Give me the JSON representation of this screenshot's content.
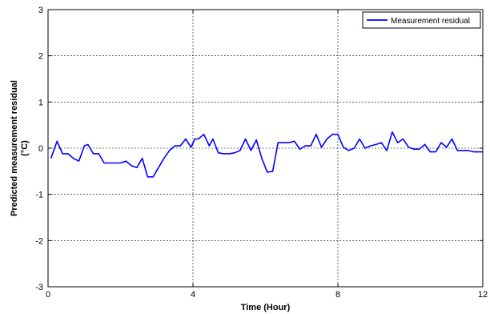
{
  "chart_data": {
    "type": "line",
    "title": "",
    "xlabel": "Time (Hour)",
    "ylabel_line1": "Predicted measurement residual",
    "ylabel_line2": "(°C)",
    "xlim": [
      0,
      12
    ],
    "ylim": [
      -3,
      3
    ],
    "xticks": [
      0,
      4,
      8,
      12
    ],
    "yticks": [
      -3,
      -2,
      -1,
      0,
      1,
      2,
      3
    ],
    "grid": true,
    "legend_position": "top-right",
    "series": [
      {
        "name": "Measurement residual",
        "color": "#0000ff",
        "x": [
          0.08,
          0.25,
          0.4,
          0.55,
          0.7,
          0.85,
          1.0,
          1.1,
          1.25,
          1.4,
          1.55,
          1.7,
          1.85,
          2.0,
          2.15,
          2.3,
          2.45,
          2.6,
          2.75,
          2.9,
          3.05,
          3.2,
          3.35,
          3.5,
          3.65,
          3.8,
          3.95,
          4.05,
          4.15,
          4.3,
          4.45,
          4.55,
          4.7,
          4.85,
          5.0,
          5.15,
          5.3,
          5.45,
          5.6,
          5.75,
          5.9,
          6.05,
          6.2,
          6.35,
          6.5,
          6.65,
          6.8,
          6.95,
          7.1,
          7.25,
          7.4,
          7.55,
          7.7,
          7.85,
          8.0,
          8.15,
          8.3,
          8.45,
          8.6,
          8.75,
          8.9,
          9.05,
          9.2,
          9.35,
          9.5,
          9.65,
          9.8,
          9.95,
          10.1,
          10.25,
          10.4,
          10.55,
          10.7,
          10.85,
          11.0,
          11.15,
          11.3,
          11.45,
          11.6,
          11.75,
          11.9,
          12.0
        ],
        "y": [
          -0.22,
          0.15,
          -0.12,
          -0.12,
          -0.22,
          -0.28,
          0.05,
          0.08,
          -0.12,
          -0.12,
          -0.32,
          -0.32,
          -0.32,
          -0.32,
          -0.28,
          -0.38,
          -0.42,
          -0.22,
          -0.62,
          -0.62,
          -0.42,
          -0.22,
          -0.05,
          0.05,
          0.05,
          0.2,
          0.02,
          0.2,
          0.2,
          0.3,
          0.05,
          0.2,
          -0.1,
          -0.12,
          -0.12,
          -0.1,
          -0.05,
          0.2,
          -0.05,
          0.18,
          -0.22,
          -0.52,
          -0.5,
          0.12,
          0.12,
          0.12,
          0.15,
          -0.02,
          0.05,
          0.05,
          0.3,
          0.02,
          0.2,
          0.3,
          0.3,
          0.02,
          -0.05,
          0.0,
          0.2,
          0.0,
          0.05,
          0.08,
          0.12,
          -0.05,
          0.35,
          0.12,
          0.2,
          0.02,
          -0.02,
          -0.02,
          0.08,
          -0.08,
          -0.08,
          0.12,
          0.02,
          0.2,
          -0.05,
          -0.05,
          -0.05,
          -0.08,
          -0.08,
          -0.08
        ]
      }
    ]
  }
}
